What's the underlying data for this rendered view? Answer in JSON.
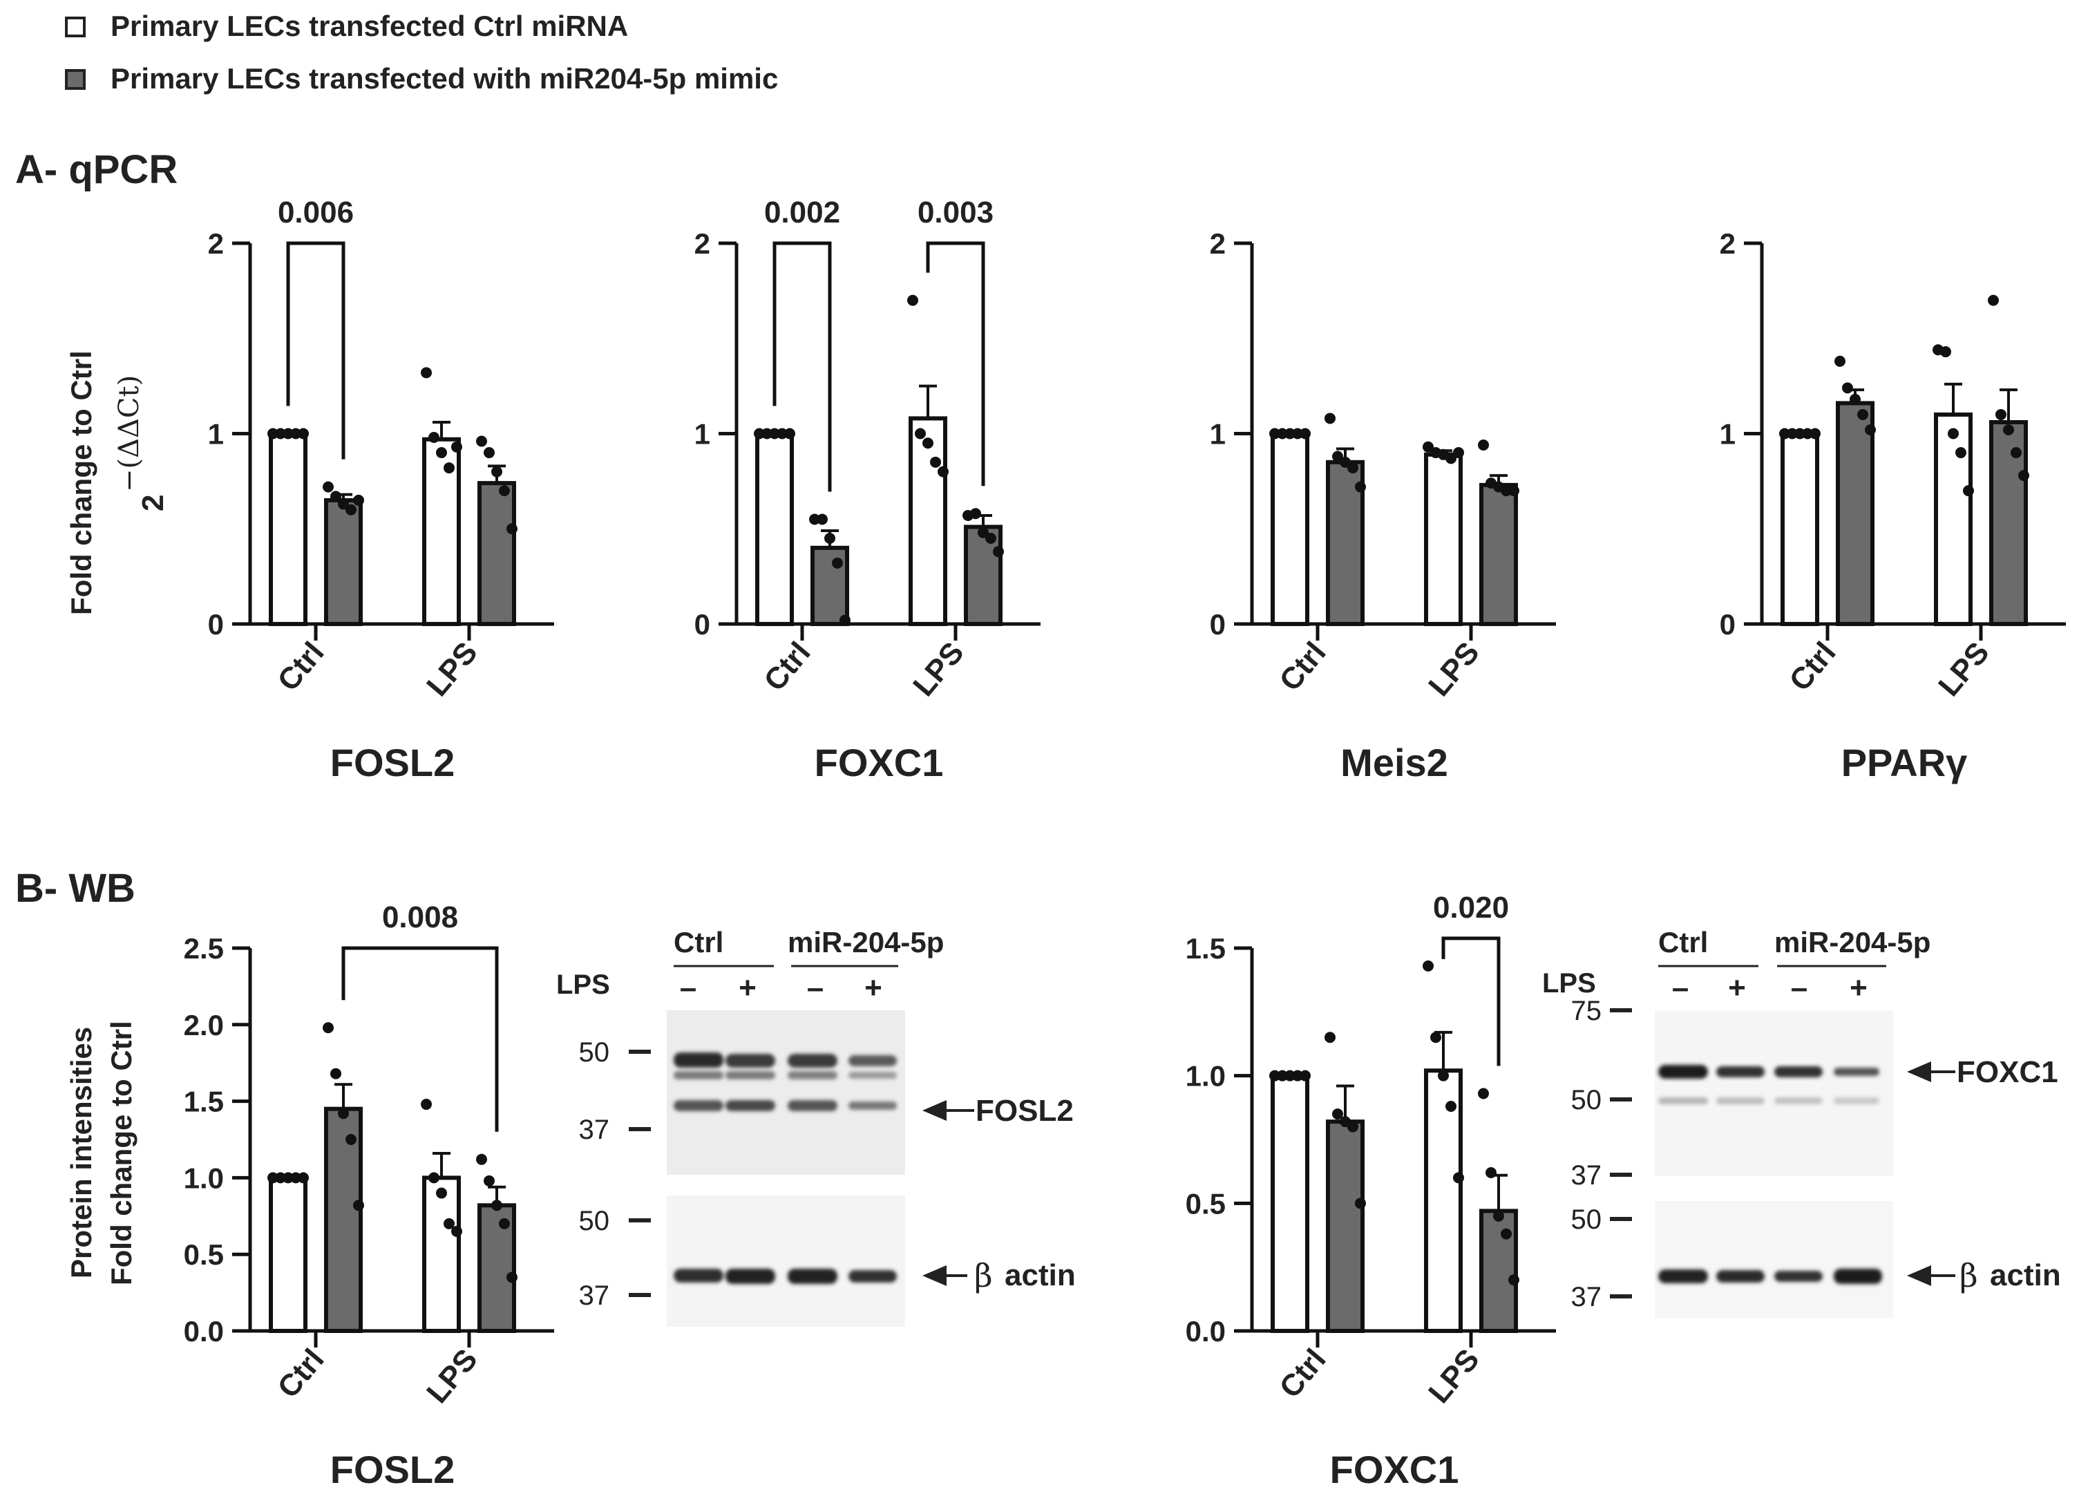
{
  "legend": {
    "items": [
      {
        "label": "Primary LECs transfected Ctrl miRNA",
        "color": "#ffffff"
      },
      {
        "label": "Primary LECs transfected with miR204-5p mimic",
        "color": "#6b6b6b"
      }
    ]
  },
  "panel_a": {
    "title": "A- qPCR",
    "ylabel_line1": "Fold change to Ctrl",
    "ylabel_base": "2",
    "ylabel_exp": "−(ΔΔCt)"
  },
  "panel_b": {
    "title": "B- WB",
    "ylabel_line1": "Protein intensities",
    "ylabel_line2": "Fold change to Ctrl"
  },
  "colors": {
    "ctrl_fill": "#ffffff",
    "mimic_fill": "#6b6b6b",
    "stroke": "#111111"
  },
  "chart_data": [
    {
      "type": "bar",
      "gene": "FOSL2",
      "panel": "A",
      "categories": [
        "Ctrl",
        "LPS"
      ],
      "ylim": [
        0,
        2
      ],
      "yticks": [
        "0",
        "1",
        "2"
      ],
      "ytick_values": [
        0,
        1,
        2
      ],
      "series": [
        {
          "fill": "#ffffff",
          "values": [
            1.0,
            0.97
          ],
          "sem": [
            0,
            0.09
          ],
          "points": [
            [
              1,
              1,
              1,
              1,
              1
            ],
            [
              1.32,
              0.98,
              0.9,
              0.82,
              0.93
            ]
          ]
        },
        {
          "fill": "#6b6b6b",
          "values": [
            0.65,
            0.74
          ],
          "sem": [
            0.03,
            0.09
          ],
          "points": [
            [
              0.72,
              0.67,
              0.63,
              0.6,
              0.65
            ],
            [
              0.96,
              0.9,
              0.8,
              0.7,
              0.5
            ]
          ]
        }
      ],
      "significance": [
        {
          "label": "0.006",
          "from": [
            0,
            0
          ],
          "to": [
            0,
            1
          ]
        }
      ]
    },
    {
      "type": "bar",
      "gene": "FOXC1",
      "panel": "A",
      "categories": [
        "Ctrl",
        "LPS"
      ],
      "ylim": [
        0,
        2
      ],
      "yticks": [
        "0",
        "1",
        "2"
      ],
      "ytick_values": [
        0,
        1,
        2
      ],
      "series": [
        {
          "fill": "#ffffff",
          "values": [
            1.0,
            1.08
          ],
          "sem": [
            0,
            0.17
          ],
          "points": [
            [
              1,
              1,
              1,
              1,
              1
            ],
            [
              1.7,
              1.0,
              0.95,
              0.85,
              0.8
            ]
          ]
        },
        {
          "fill": "#6b6b6b",
          "values": [
            0.4,
            0.51
          ],
          "sem": [
            0.09,
            0.06
          ],
          "points": [
            [
              0.55,
              0.55,
              0.45,
              0.32,
              0.02
            ],
            [
              0.57,
              0.58,
              0.48,
              0.45,
              0.38
            ]
          ]
        }
      ],
      "significance": [
        {
          "label": "0.002",
          "from": [
            0,
            0
          ],
          "to": [
            0,
            1
          ]
        },
        {
          "label": "0.003",
          "from": [
            1,
            0
          ],
          "to": [
            1,
            1
          ]
        }
      ]
    },
    {
      "type": "bar",
      "gene": "Meis2",
      "panel": "A",
      "categories": [
        "Ctrl",
        "LPS"
      ],
      "ylim": [
        0,
        2
      ],
      "yticks": [
        "0",
        "1",
        "2"
      ],
      "ytick_values": [
        0,
        1,
        2
      ],
      "series": [
        {
          "fill": "#ffffff",
          "values": [
            1.0,
            0.89
          ],
          "sem": [
            0,
            0.02
          ],
          "points": [
            [
              1,
              1,
              1,
              1,
              1
            ],
            [
              0.93,
              0.9,
              0.89,
              0.87,
              0.9
            ]
          ]
        },
        {
          "fill": "#6b6b6b",
          "values": [
            0.85,
            0.73
          ],
          "sem": [
            0.07,
            0.05
          ],
          "points": [
            [
              1.08,
              0.88,
              0.85,
              0.82,
              0.72
            ],
            [
              0.94,
              0.74,
              0.72,
              0.7,
              0.7
            ]
          ]
        }
      ],
      "significance": []
    },
    {
      "type": "bar",
      "gene": "PPARγ",
      "panel": "A",
      "categories": [
        "Ctrl",
        "LPS"
      ],
      "ylim": [
        0,
        2
      ],
      "yticks": [
        "0",
        "1",
        "2"
      ],
      "ytick_values": [
        0,
        1,
        2
      ],
      "series": [
        {
          "fill": "#ffffff",
          "values": [
            1.0,
            1.1
          ],
          "sem": [
            0,
            0.16
          ],
          "points": [
            [
              1,
              1,
              1,
              1,
              1
            ],
            [
              1.44,
              1.43,
              1.0,
              0.9,
              0.7
            ]
          ]
        },
        {
          "fill": "#6b6b6b",
          "values": [
            1.16,
            1.06
          ],
          "sem": [
            0.07,
            0.17
          ],
          "points": [
            [
              1.38,
              1.24,
              1.18,
              1.1,
              1.02
            ],
            [
              1.7,
              1.1,
              1.02,
              0.9,
              0.78
            ]
          ]
        }
      ],
      "significance": []
    },
    {
      "type": "bar",
      "gene": "FOSL2",
      "panel": "B",
      "categories": [
        "Ctrl",
        "LPS"
      ],
      "ylim": [
        0,
        2.5
      ],
      "yticks": [
        "0.0",
        "0.5",
        "1.0",
        "1.5",
        "2.0",
        "2.5"
      ],
      "ytick_values": [
        0,
        0.5,
        1,
        1.5,
        2,
        2.5
      ],
      "series": [
        {
          "fill": "#ffffff",
          "values": [
            1.0,
            1.0
          ],
          "sem": [
            0,
            0.16
          ],
          "points": [
            [
              1,
              1,
              1,
              1,
              1
            ],
            [
              1.48,
              1.0,
              0.9,
              0.7,
              0.65
            ]
          ]
        },
        {
          "fill": "#6b6b6b",
          "values": [
            1.45,
            0.82
          ],
          "sem": [
            0.16,
            0.12
          ],
          "points": [
            [
              1.98,
              1.68,
              1.42,
              1.25,
              0.82
            ],
            [
              1.12,
              0.98,
              0.82,
              0.7,
              0.35
            ]
          ]
        }
      ],
      "significance": [
        {
          "label": "0.008",
          "from": [
            0,
            1
          ],
          "to": [
            1,
            1
          ]
        }
      ]
    },
    {
      "type": "bar",
      "gene": "FOXC1",
      "panel": "B",
      "categories": [
        "Ctrl",
        "LPS"
      ],
      "ylim": [
        0,
        1.5
      ],
      "yticks": [
        "0.0",
        "0.5",
        "1.0",
        "1.5"
      ],
      "ytick_values": [
        0,
        0.5,
        1,
        1.5
      ],
      "series": [
        {
          "fill": "#ffffff",
          "values": [
            1.0,
            1.02
          ],
          "sem": [
            0,
            0.15
          ],
          "points": [
            [
              1,
              1,
              1,
              1,
              1
            ],
            [
              1.43,
              1.15,
              1.0,
              0.88,
              0.6
            ]
          ]
        },
        {
          "fill": "#6b6b6b",
          "values": [
            0.82,
            0.47
          ],
          "sem": [
            0.14,
            0.14
          ],
          "points": [
            [
              1.15,
              0.85,
              0.82,
              0.8,
              0.5
            ],
            [
              0.93,
              0.62,
              0.45,
              0.38,
              0.2
            ]
          ]
        }
      ],
      "significance": [
        {
          "label": "0.020",
          "from": [
            1,
            0
          ],
          "to": [
            1,
            1
          ]
        }
      ]
    }
  ],
  "blots": [
    {
      "header_ctrl": "Ctrl",
      "header_mimic": "miR-204-5p",
      "lps_label": "LPS",
      "lane_signs": [
        "–",
        "+",
        "–",
        "+"
      ],
      "target_label": "FOSL2",
      "loading_label": "actin",
      "beta_symbol": "β",
      "top_markers": [
        "50",
        "37"
      ],
      "bottom_markers": [
        "50",
        "37"
      ]
    },
    {
      "header_ctrl": "Ctrl",
      "header_mimic": "miR-204-5p",
      "lps_label": "LPS",
      "lane_signs": [
        "–",
        "+",
        "–",
        "+"
      ],
      "target_label": "FOXC1",
      "loading_label": "actin",
      "beta_symbol": "β",
      "top_markers": [
        "75",
        "50",
        "37"
      ],
      "bottom_markers": [
        "50",
        "37"
      ]
    }
  ]
}
